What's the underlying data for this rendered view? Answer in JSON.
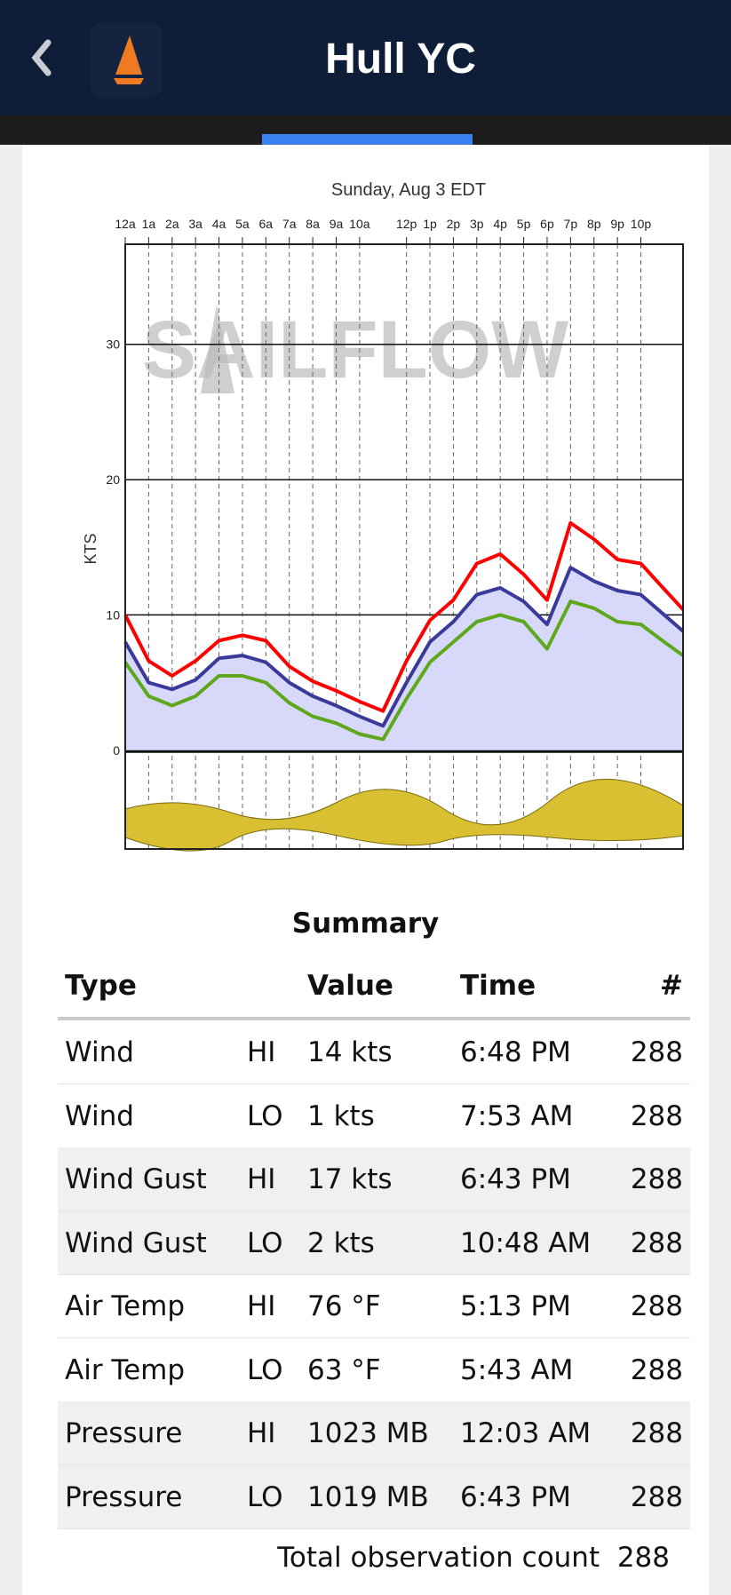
{
  "header": {
    "title": "Hull YC"
  },
  "chart_data": {
    "type": "line",
    "title": "Sunday, Aug 3 EDT",
    "y_label": "KTS",
    "watermark": "SAILFLOW",
    "x": [
      0,
      1,
      2,
      3,
      4,
      5,
      6,
      7,
      8,
      9,
      10,
      11,
      12,
      13,
      14,
      15,
      16,
      17,
      18,
      19,
      20,
      21,
      22,
      23,
      23.8
    ],
    "series": [
      {
        "color": "#ff0000",
        "values": [
          10,
          6.6,
          5.5,
          6.6,
          8.1,
          8.5,
          8.1,
          6.2,
          5.1,
          4.4,
          3.6,
          2.9,
          6.6,
          9.6,
          11.1,
          13.8,
          14.5,
          13,
          11.1,
          16.8,
          15.6,
          14.1,
          13.8,
          11.9,
          10.4
        ]
      },
      {
        "color": "#3a3a9a",
        "values": [
          8,
          5,
          4.5,
          5.2,
          6.8,
          7,
          6.5,
          5,
          4,
          3.3,
          2.5,
          1.8,
          5,
          8,
          9.5,
          11.5,
          12,
          11,
          9.3,
          13.5,
          12.5,
          11.8,
          11.5,
          10,
          8.8
        ]
      },
      {
        "color": "#5fa81e",
        "values": [
          6.5,
          4,
          3.3,
          4,
          5.5,
          5.5,
          5,
          3.5,
          2.5,
          2,
          1.2,
          0.8,
          3.8,
          6.5,
          8,
          9.5,
          10,
          9.5,
          7.5,
          11,
          10.5,
          9.5,
          9.3,
          8,
          7
        ]
      }
    ],
    "area_color": "#d8d8fb",
    "xlim": [
      0,
      23.8
    ],
    "xticks": [
      {
        "value": 0,
        "label": "12a"
      },
      {
        "value": 1,
        "label": "1a"
      },
      {
        "value": 2,
        "label": "2a"
      },
      {
        "value": 3,
        "label": "3a"
      },
      {
        "value": 4,
        "label": "4a"
      },
      {
        "value": 5,
        "label": "5a"
      },
      {
        "value": 6,
        "label": "6a"
      },
      {
        "value": 7,
        "label": "7a"
      },
      {
        "value": 8,
        "label": "8a"
      },
      {
        "value": 9,
        "label": "9a"
      },
      {
        "value": 10,
        "label": "10a"
      },
      {
        "value": 12,
        "label": "12p"
      },
      {
        "value": 13,
        "label": "1p"
      },
      {
        "value": 14,
        "label": "2p"
      },
      {
        "value": 15,
        "label": "3p"
      },
      {
        "value": 16,
        "label": "4p"
      },
      {
        "value": 17,
        "label": "5p"
      },
      {
        "value": 18,
        "label": "6p"
      },
      {
        "value": 19,
        "label": "7p"
      },
      {
        "value": 20,
        "label": "8p"
      },
      {
        "value": 21,
        "label": "9p"
      },
      {
        "value": 22,
        "label": "10p"
      }
    ],
    "ylim": [
      -7.3,
      37.4
    ],
    "yticks": [
      0,
      10,
      20,
      30
    ],
    "grid": true
  },
  "summary": {
    "title": "Summary",
    "columns": [
      "Type",
      "Value",
      "Time",
      "#"
    ],
    "rows": [
      [
        "Wind",
        "HI",
        "14 kts",
        "6:48 PM",
        "288"
      ],
      [
        "Wind",
        "LO",
        "1 kts",
        "7:53 AM",
        "288"
      ],
      [
        "Wind Gust",
        "HI",
        "17 kts",
        "6:43 PM",
        "288"
      ],
      [
        "Wind Gust",
        "LO",
        "2 kts",
        "10:48 AM",
        "288"
      ],
      [
        "Air Temp",
        "HI",
        "76 °F",
        "5:13 PM",
        "288"
      ],
      [
        "Air Temp",
        "LO",
        "63 °F",
        "5:43 AM",
        "288"
      ],
      [
        "Pressure",
        "HI",
        "1023 MB",
        "12:03 AM",
        "288"
      ],
      [
        "Pressure",
        "LO",
        "1019 MB",
        "6:43 PM",
        "288"
      ]
    ],
    "shaded_rows": [
      2,
      3,
      6,
      7
    ],
    "total_label": "Total observation count",
    "total_count": "288"
  }
}
